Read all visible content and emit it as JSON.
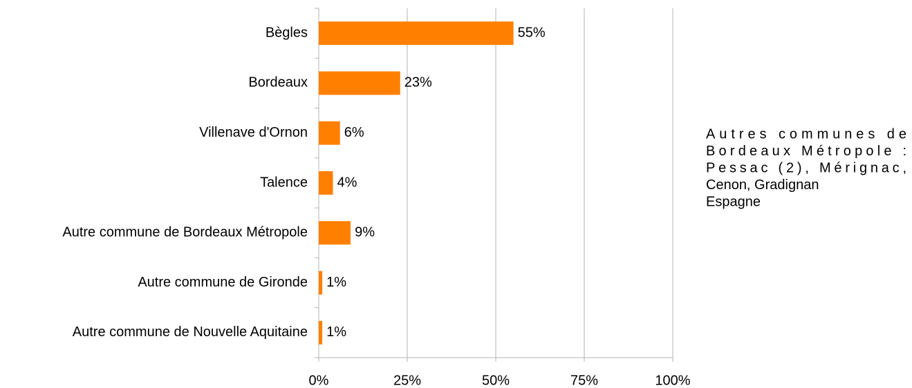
{
  "chart_data": {
    "type": "barh",
    "categories": [
      "Bègles",
      "Bordeaux",
      "Villenave d'Ornon",
      "Talence",
      "Autre commune de Bordeaux Métropole",
      "Autre commune de Gironde",
      "Autre commune de Nouvelle Aquitaine"
    ],
    "values": [
      55,
      23,
      6,
      4,
      9,
      1,
      1
    ],
    "value_labels": [
      "55%",
      "23%",
      "6%",
      "4%",
      "9%",
      "1%",
      "1%"
    ],
    "color": "#ff8000",
    "xlim": [
      0,
      100
    ],
    "xticks": [
      {
        "value": 0,
        "label": "0%"
      },
      {
        "value": 25,
        "label": "25%"
      },
      {
        "value": 50,
        "label": "50%"
      },
      {
        "value": 75,
        "label": "75%"
      },
      {
        "value": 100,
        "label": "100%"
      }
    ],
    "grid": true,
    "annotation": [
      "Autres communes de",
      "Bordeaux Métropole :",
      "Pessac (2), Mérignac,",
      "Cenon, Gradignan",
      "Espagne"
    ]
  }
}
